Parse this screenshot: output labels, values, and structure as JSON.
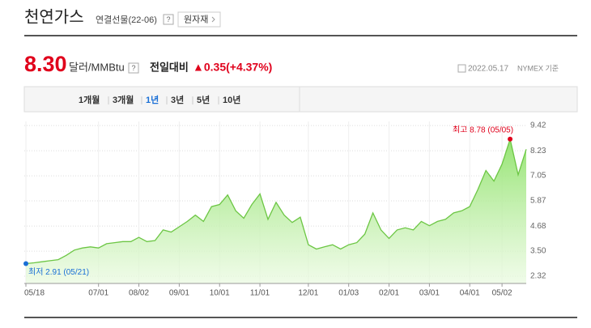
{
  "header": {
    "title": "천연가스",
    "subtitle": "연결선물(22-06)",
    "help": "?",
    "button": "원자재"
  },
  "quote": {
    "price": "8.30",
    "unit": "달러/MMBtu",
    "change_label": "전일대비",
    "change": "▲0.35(+4.37%)",
    "date": "2022.05.17",
    "source": "NYMEX 기준"
  },
  "tabs": {
    "items": [
      "1개월",
      "3개월",
      "1년",
      "3년",
      "5년",
      "10년"
    ],
    "selected": 2
  },
  "chart_data": {
    "type": "area",
    "color": "#6cc644",
    "categories": [
      "05/18",
      null,
      null,
      null,
      null,
      null,
      null,
      null,
      null,
      "07/01",
      null,
      null,
      null,
      null,
      "08/02",
      null,
      null,
      null,
      null,
      "09/01",
      null,
      null,
      null,
      null,
      "10/01",
      null,
      null,
      null,
      null,
      "11/01",
      null,
      null,
      null,
      null,
      null,
      "12/01",
      null,
      null,
      null,
      null,
      "01/03",
      null,
      null,
      null,
      null,
      "02/01",
      null,
      null,
      null,
      null,
      "03/01",
      null,
      null,
      null,
      null,
      "04/01",
      null,
      null,
      null,
      "05/02",
      null,
      null,
      null
    ],
    "values": [
      2.91,
      2.95,
      3.0,
      3.05,
      3.1,
      3.3,
      3.55,
      3.65,
      3.7,
      3.65,
      3.85,
      3.9,
      3.95,
      3.95,
      4.15,
      3.95,
      4.0,
      4.5,
      4.4,
      4.65,
      4.9,
      5.2,
      4.9,
      5.6,
      5.7,
      6.15,
      5.4,
      5.05,
      5.7,
      6.2,
      5.0,
      5.8,
      5.2,
      4.85,
      5.1,
      3.8,
      3.6,
      3.7,
      3.8,
      3.6,
      3.8,
      3.9,
      4.3,
      5.3,
      4.5,
      4.1,
      4.5,
      4.6,
      4.5,
      4.9,
      4.7,
      4.9,
      5.0,
      5.3,
      5.4,
      5.6,
      6.4,
      7.3,
      6.8,
      7.6,
      8.78,
      7.1,
      8.3
    ],
    "ylim": [
      2.32,
      9.42
    ],
    "yticks": [
      2.32,
      {
        "value": 3.5,
        "label": "3.50"
      },
      4.68,
      5.87,
      7.05,
      8.23,
      9.42
    ],
    "grid": true,
    "annotations": [
      {
        "text": "최고 8.78 (05/05)",
        "index": 60,
        "color": "#e0001b"
      },
      {
        "text": "최저 2.91 (05/21)",
        "index": 0,
        "color": "#1a6fd6"
      }
    ]
  }
}
